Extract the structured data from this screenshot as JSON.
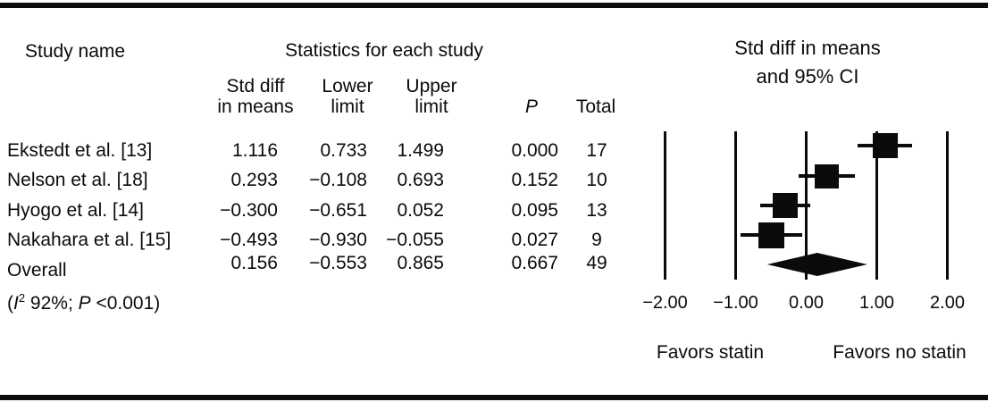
{
  "table": {
    "header_study": "Study name",
    "header_statistics": "Statistics for each study",
    "columns": {
      "std_diff": [
        "Std diff",
        "in means"
      ],
      "lower": [
        "Lower",
        "limit"
      ],
      "upper": [
        "Upper",
        "limit"
      ],
      "p": "P",
      "total": "Total"
    },
    "rows": [
      {
        "study": "Ekstedt et al. [13]",
        "std_diff": "1.116",
        "lower": "0.733",
        "upper": "1.499",
        "p": "0.000",
        "total": "17"
      },
      {
        "study": "Nelson et al. [18]",
        "std_diff": "0.293",
        "lower": "−0.108",
        "upper": "0.693",
        "p": "0.152",
        "total": "10"
      },
      {
        "study": "Hyogo et al. [14]",
        "std_diff": "−0.300",
        "lower": "−0.651",
        "upper": "0.052",
        "p": "0.095",
        "total": "13"
      },
      {
        "study": "Nakahara et al. [15]",
        "std_diff": "−0.493",
        "lower": "−0.930",
        "upper": "−0.055",
        "p": "0.027",
        "total": "9"
      },
      {
        "study": "Overall",
        "std_diff": "0.156",
        "lower": "−0.553",
        "upper": "0.865",
        "p": "0.667",
        "total": "49"
      }
    ],
    "overall_note": {
      "open": "(",
      "i": "I",
      "sup": "2",
      "mid": " 92%; ",
      "p": "P",
      "close": " <0.001)"
    }
  },
  "chart_data": {
    "type": "scatter",
    "variant": "forest-plot",
    "title": [
      "Std diff in means",
      "and 95% CI"
    ],
    "xlabel": "Std diff in means",
    "xlim": [
      -2.5,
      2.5
    ],
    "grid": "vertical-reference-lines",
    "x_ticks": [
      {
        "value": -2,
        "label": "−2.00"
      },
      {
        "value": -1,
        "label": "−1.00"
      },
      {
        "value": 0,
        "label": "0.00"
      },
      {
        "value": 1,
        "label": "1.00"
      },
      {
        "value": 2,
        "label": "2.00"
      }
    ],
    "points": [
      {
        "study": "Ekstedt et al. [13]",
        "mean": 1.116,
        "ci_low": 0.733,
        "ci_high": 1.499,
        "total": 17,
        "marker_px": 28
      },
      {
        "study": "Nelson et al. [18]",
        "mean": 0.293,
        "ci_low": -0.108,
        "ci_high": 0.693,
        "total": 10,
        "marker_px": 27
      },
      {
        "study": "Hyogo et al. [14]",
        "mean": -0.3,
        "ci_low": -0.651,
        "ci_high": 0.052,
        "total": 13,
        "marker_px": 28
      },
      {
        "study": "Nakahara et al. [15]",
        "mean": -0.493,
        "ci_low": -0.93,
        "ci_high": -0.055,
        "total": 9,
        "marker_px": 29
      }
    ],
    "overall": {
      "study": "Overall",
      "mean": 0.156,
      "ci_low": -0.553,
      "ci_high": 0.865,
      "total": 49
    },
    "footer_left": "Favors statin",
    "footer_right": "Favors no statin",
    "marker_color": "#0b0b0b"
  }
}
